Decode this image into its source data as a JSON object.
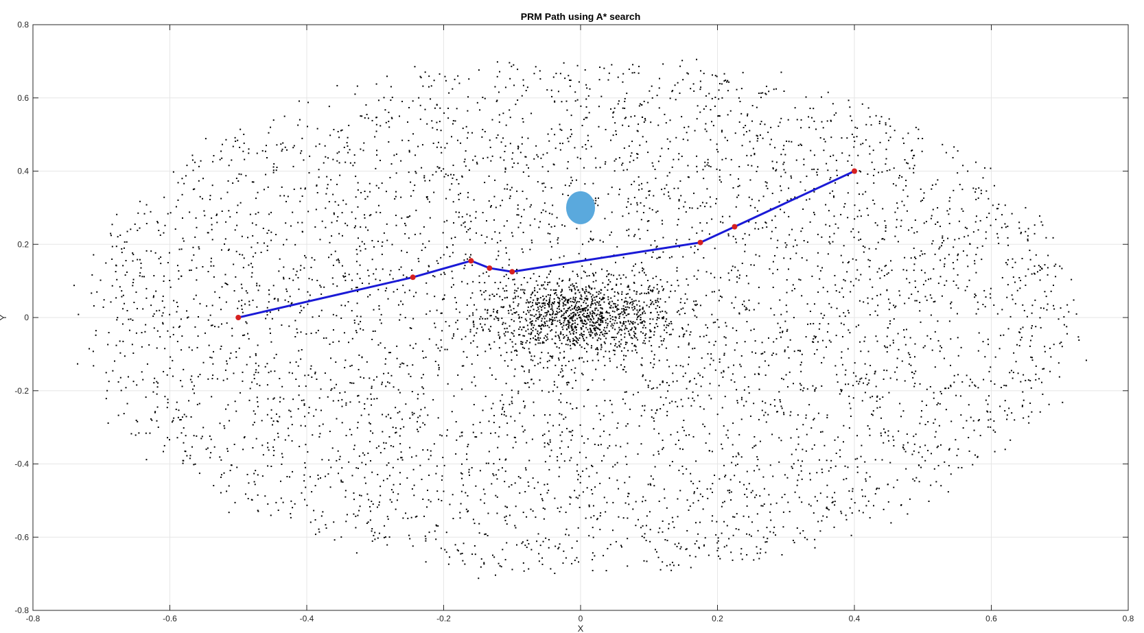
{
  "chart_data": {
    "type": "scatter",
    "title": "PRM Path using A* search",
    "xlabel": "X",
    "ylabel": "Y",
    "xlim": [
      -0.8,
      0.8
    ],
    "ylim": [
      -0.8,
      0.8
    ],
    "xticks": [
      -0.8,
      -0.6,
      -0.4,
      -0.2,
      0,
      0.2,
      0.4,
      0.6,
      0.8
    ],
    "yticks": [
      -0.8,
      -0.6,
      -0.4,
      -0.2,
      0,
      0.2,
      0.4,
      0.6,
      0.8
    ],
    "xtick_labels": [
      "-0.8",
      "-0.6",
      "-0.4",
      "-0.2",
      "0",
      "0.2",
      "0.4",
      "0.6",
      "0.8"
    ],
    "ytick_labels": [
      "-0.8",
      "-0.6",
      "-0.4",
      "-0.2",
      "0",
      "0.2",
      "0.4",
      "0.6",
      "0.8"
    ],
    "grid": true,
    "sample_points": {
      "count": 6000,
      "distribution": "elliptical cloud centered at (0,0), dense core, x-extent about ±0.72, y-extent about ±0.72",
      "color": "#000000"
    },
    "obstacle": {
      "center": [
        0.0,
        0.3
      ],
      "radius": 0.045,
      "color": "#5aa9dd"
    },
    "path": {
      "color": "#1a1ad6",
      "node_color": "#d62020",
      "x": [
        -0.5,
        -0.245,
        -0.16,
        -0.133,
        -0.1,
        0.175,
        0.225,
        0.4
      ],
      "y": [
        0.0,
        0.11,
        0.155,
        0.135,
        0.125,
        0.205,
        0.248,
        0.4
      ]
    }
  }
}
